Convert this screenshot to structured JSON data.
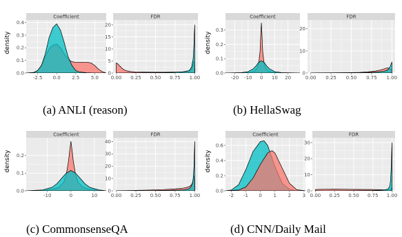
{
  "figures": [
    {
      "caption": "(a)  ANLI (reason)",
      "ylabel": "density",
      "panels": [
        {
          "title": "Coefficient",
          "kind": "coef",
          "xlim": [
            -4,
            6.5
          ],
          "ylim": [
            0,
            0.42
          ],
          "xticks": [
            -2.5,
            0,
            2.5,
            5
          ],
          "xtick_labels": [
            "-2.5",
            "0.0",
            "2.5",
            "5.0"
          ],
          "yticks": [
            0,
            0.1,
            0.2,
            0.3,
            0.4
          ],
          "ytick_labels": [
            "0.0",
            "0.1",
            "0.2",
            "0.3",
            "0.4"
          ]
        },
        {
          "title": "FDR",
          "kind": "fdr",
          "xlim": [
            -0.04,
            1.04
          ],
          "ylim": [
            0,
            22
          ],
          "xticks": [
            0,
            0.25,
            0.5,
            0.75,
            1
          ],
          "xtick_labels": [
            "0.00",
            "0.25",
            "0.50",
            "0.75",
            "1.00"
          ],
          "yticks": [
            0,
            5,
            10,
            15,
            20
          ],
          "ytick_labels": [
            "0",
            "5",
            "10",
            "15",
            "20"
          ]
        }
      ]
    },
    {
      "caption": "(b)  HellaSwag",
      "ylabel": "density",
      "panels": [
        {
          "title": "Coefficient",
          "kind": "coef",
          "xlim": [
            -27,
            29
          ],
          "ylim": [
            0,
            0.37
          ],
          "xticks": [
            -20,
            -10,
            0,
            10,
            20
          ],
          "xtick_labels": [
            "-20",
            "-10",
            "0",
            "10",
            "20"
          ],
          "yticks": [
            0,
            0.1,
            0.2,
            0.3
          ],
          "ytick_labels": [
            "0.0",
            "0.1",
            "0.2",
            "0.3"
          ]
        },
        {
          "title": "FDR",
          "kind": "fdr",
          "xlim": [
            -0.04,
            1.04
          ],
          "ylim": [
            0,
            24
          ],
          "xticks": [
            0,
            0.25,
            0.5,
            0.75,
            1
          ],
          "xtick_labels": [
            "0.00",
            "0.25",
            "0.50",
            "0.75",
            "1.00"
          ],
          "yticks": [
            0,
            10,
            20
          ],
          "ytick_labels": [
            "0",
            "10",
            "20"
          ]
        }
      ]
    },
    {
      "caption": "(c)  CommonsenseQA",
      "ylabel": "density",
      "panels": [
        {
          "title": "Coefficient",
          "kind": "coef",
          "xlim": [
            -19,
            15
          ],
          "ylim": [
            0,
            0.3
          ],
          "xticks": [
            -10,
            0,
            10
          ],
          "xtick_labels": [
            "-10",
            "0",
            "10"
          ],
          "yticks": [
            0,
            0.1,
            0.2
          ],
          "ytick_labels": [
            "0.0",
            "0.1",
            "0.2"
          ]
        },
        {
          "title": "FDR",
          "kind": "fdr",
          "xlim": [
            -0.04,
            1.04
          ],
          "ylim": [
            0,
            43
          ],
          "xticks": [
            0,
            0.25,
            0.5,
            0.75,
            1
          ],
          "xtick_labels": [
            "0.00",
            "0.25",
            "0.50",
            "0.75",
            "1.00"
          ],
          "yticks": [
            0,
            10,
            20,
            30,
            40
          ],
          "ytick_labels": [
            "0",
            "10",
            "20",
            "30",
            "40"
          ]
        }
      ]
    },
    {
      "caption": "(d)  CNN/Daily Mail",
      "ylabel": "density",
      "panels": [
        {
          "title": "Coefficient",
          "kind": "coef",
          "xlim": [
            -2.4,
            3.1
          ],
          "ylim": [
            0,
            0.7
          ],
          "xticks": [
            -2,
            -1,
            0,
            1,
            2,
            3
          ],
          "xtick_labels": [
            "-2",
            "-1",
            "0",
            "1",
            "2",
            "3"
          ],
          "yticks": [
            0,
            0.2,
            0.4,
            0.6
          ],
          "ytick_labels": [
            "0.0",
            "0.2",
            "0.4",
            "0.6"
          ]
        },
        {
          "title": "FDR",
          "kind": "fdr",
          "xlim": [
            -0.04,
            1.04
          ],
          "ylim": [
            0,
            33
          ],
          "xticks": [
            0,
            0.25,
            0.5,
            0.75,
            1
          ],
          "xtick_labels": [
            "0.00",
            "0.25",
            "0.50",
            "0.75",
            "1.00"
          ],
          "yticks": [
            0,
            10,
            20,
            30
          ],
          "ytick_labels": [
            "0",
            "10",
            "20",
            "30"
          ]
        }
      ]
    }
  ],
  "colors": {
    "red": "#F8766D",
    "teal": "#00BFC4",
    "panel_bg": "#EBEBEB",
    "strip_bg": "#D9D9D9",
    "grid": "#FFFFFF"
  },
  "chart_data": [
    {
      "type": "area",
      "title": "Coefficient",
      "series": [
        {
          "color": "#F8766D",
          "x": [
            -4,
            -3,
            -2.5,
            -2,
            -1.5,
            -1,
            -0.5,
            0,
            0.5,
            1,
            1.5,
            2,
            2.5,
            3,
            3.5,
            4,
            4.5,
            5,
            5.5,
            6,
            6.5
          ],
          "y": [
            0,
            0.005,
            0.02,
            0.06,
            0.13,
            0.19,
            0.22,
            0.23,
            0.2,
            0.15,
            0.11,
            0.09,
            0.085,
            0.085,
            0.085,
            0.085,
            0.08,
            0.06,
            0.03,
            0.01,
            0
          ]
        },
        {
          "color": "#00BFC4",
          "x": [
            -4,
            -3,
            -2.5,
            -2,
            -1.5,
            -1,
            -0.5,
            0,
            0.5,
            1,
            1.5,
            2,
            2.5,
            3,
            4,
            5,
            6.5
          ],
          "y": [
            0,
            0.003,
            0.02,
            0.06,
            0.15,
            0.28,
            0.36,
            0.39,
            0.34,
            0.24,
            0.13,
            0.06,
            0.02,
            0.008,
            0.002,
            0,
            0
          ]
        }
      ]
    },
    {
      "type": "area",
      "title": "FDR",
      "series": [
        {
          "color": "#F8766D",
          "x": [
            0,
            0.02,
            0.05,
            0.08,
            0.12,
            0.18,
            0.25,
            0.4,
            0.6,
            0.8,
            0.9,
            0.95,
            0.97,
            0.985,
            1
          ],
          "y": [
            4.2,
            3.8,
            2.8,
            1.8,
            1.0,
            0.6,
            0.45,
            0.35,
            0.32,
            0.4,
            0.6,
            1.2,
            2.5,
            5,
            2
          ]
        },
        {
          "color": "#00BFC4",
          "x": [
            0,
            0.1,
            0.3,
            0.5,
            0.7,
            0.85,
            0.93,
            0.96,
            0.98,
            0.99,
            0.995,
            1
          ],
          "y": [
            0,
            0.05,
            0.1,
            0.15,
            0.25,
            0.5,
            1.0,
            2.5,
            6,
            12,
            17,
            20
          ]
        }
      ]
    },
    {
      "type": "area",
      "title": "Coefficient",
      "series": [
        {
          "color": "#F8766D",
          "x": [
            -27,
            -15,
            -8,
            -5,
            -3,
            -2,
            -1,
            -0.5,
            0,
            0.5,
            1,
            2,
            3,
            5,
            8,
            15,
            29
          ],
          "y": [
            0,
            0,
            0.005,
            0.015,
            0.04,
            0.07,
            0.15,
            0.26,
            0.35,
            0.26,
            0.15,
            0.07,
            0.04,
            0.015,
            0.005,
            0,
            0
          ]
        },
        {
          "color": "#00BFC4",
          "x": [
            -27,
            -15,
            -10,
            -6,
            -4,
            -2,
            0,
            2,
            4,
            6,
            10,
            15,
            29
          ],
          "y": [
            0,
            0.003,
            0.01,
            0.03,
            0.05,
            0.075,
            0.085,
            0.075,
            0.05,
            0.03,
            0.01,
            0.003,
            0
          ]
        }
      ]
    },
    {
      "type": "area",
      "title": "FDR",
      "series": [
        {
          "color": "#F8766D",
          "x": [
            0,
            0.1,
            0.3,
            0.5,
            0.6,
            0.7,
            0.8,
            0.85,
            0.9,
            0.93,
            0.95,
            0.97,
            0.99,
            1
          ],
          "y": [
            0.05,
            0.08,
            0.12,
            0.2,
            0.3,
            0.5,
            0.9,
            1.3,
            1.8,
            2.2,
            2.3,
            2.0,
            1.5,
            1.0
          ]
        },
        {
          "color": "#00BFC4",
          "x": [
            0,
            0.2,
            0.5,
            0.7,
            0.8,
            0.9,
            0.94,
            0.96,
            0.98,
            0.99,
            1
          ],
          "y": [
            0,
            0.05,
            0.1,
            0.2,
            0.4,
            0.8,
            1.2,
            1.8,
            3,
            4,
            5
          ]
        }
      ]
    },
    {
      "type": "area",
      "title": "Coefficient",
      "series": [
        {
          "color": "#F8766D",
          "x": [
            -19,
            -12,
            -8,
            -5,
            -3,
            -2,
            -1,
            -0.5,
            0,
            0.5,
            1,
            2,
            3,
            5,
            8,
            12,
            15
          ],
          "y": [
            0,
            0.002,
            0.008,
            0.02,
            0.05,
            0.09,
            0.17,
            0.23,
            0.28,
            0.23,
            0.17,
            0.09,
            0.05,
            0.02,
            0.008,
            0.002,
            0
          ]
        },
        {
          "color": "#00BFC4",
          "x": [
            -19,
            -12,
            -8,
            -6,
            -4,
            -2,
            0,
            2,
            4,
            6,
            8,
            12,
            15
          ],
          "y": [
            0,
            0.005,
            0.02,
            0.04,
            0.07,
            0.1,
            0.115,
            0.1,
            0.07,
            0.04,
            0.02,
            0.005,
            0
          ]
        }
      ]
    },
    {
      "type": "area",
      "title": "FDR",
      "series": [
        {
          "color": "#F8766D",
          "x": [
            0,
            0.2,
            0.4,
            0.6,
            0.7,
            0.8,
            0.85,
            0.9,
            0.93,
            0.96,
            0.98,
            0.99,
            1
          ],
          "y": [
            0.1,
            0.3,
            0.6,
            1.0,
            1.4,
            1.8,
            2.2,
            2.8,
            3.5,
            5,
            8,
            12,
            10
          ]
        },
        {
          "color": "#00BFC4",
          "x": [
            0,
            0.2,
            0.5,
            0.7,
            0.85,
            0.92,
            0.95,
            0.97,
            0.98,
            0.99,
            0.995,
            1
          ],
          "y": [
            0,
            0.1,
            0.2,
            0.4,
            0.8,
            1.5,
            3,
            6,
            10,
            20,
            32,
            40
          ]
        }
      ]
    },
    {
      "type": "area",
      "title": "Coefficient",
      "series": [
        {
          "color": "#00BFC4",
          "x": [
            -2.4,
            -2,
            -1.5,
            -1,
            -0.5,
            0,
            0.25,
            0.5,
            1,
            1.5,
            2,
            2.5,
            3.1
          ],
          "y": [
            0,
            0.01,
            0.08,
            0.28,
            0.52,
            0.65,
            0.66,
            0.6,
            0.32,
            0.1,
            0.02,
            0,
            0
          ]
        },
        {
          "color": "#F8766D",
          "x": [
            -2.4,
            -1.5,
            -1,
            -0.5,
            0,
            0.5,
            0.8,
            1,
            1.5,
            2,
            2.5,
            3.1
          ],
          "y": [
            0,
            0.01,
            0.05,
            0.17,
            0.35,
            0.5,
            0.53,
            0.5,
            0.3,
            0.1,
            0.015,
            0
          ]
        }
      ]
    },
    {
      "type": "area",
      "title": "FDR",
      "series": [
        {
          "color": "#F8766D",
          "x": [
            0,
            0.1,
            0.25,
            0.4,
            0.5,
            0.6,
            0.75,
            0.85,
            0.9,
            0.95,
            0.97,
            0.99,
            1
          ],
          "y": [
            0.8,
            1.0,
            1.1,
            1.0,
            0.9,
            0.85,
            0.8,
            0.7,
            0.6,
            0.5,
            0.6,
            1.5,
            2
          ]
        },
        {
          "color": "#00BFC4",
          "x": [
            0,
            0.2,
            0.5,
            0.75,
            0.9,
            0.95,
            0.97,
            0.98,
            0.99,
            0.995,
            1
          ],
          "y": [
            0,
            0.05,
            0.1,
            0.2,
            0.5,
            1.2,
            3,
            6,
            15,
            24,
            30
          ]
        }
      ]
    }
  ]
}
